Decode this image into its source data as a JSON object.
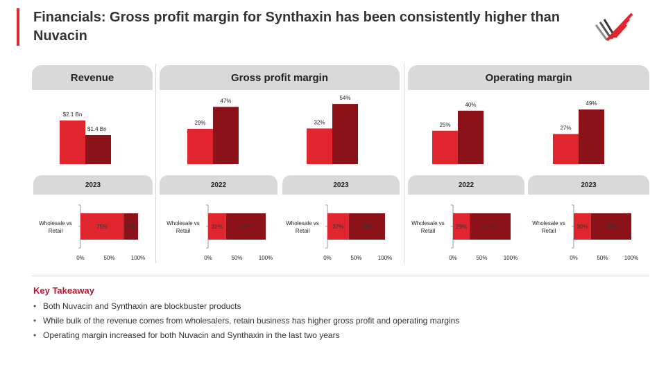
{
  "title": "Financials: Gross profit margin for Synthaxin has been consistently higher than Nuvacin",
  "colors": {
    "nuvacin": "#e0252f",
    "synthaxin": "#8b1219",
    "header_bg": "#d9d9d9",
    "accent": "#c8102e"
  },
  "panels": {
    "revenue": "Revenue",
    "gross": "Gross profit margin",
    "operating": "Operating margin"
  },
  "chart_data": [
    {
      "type": "bar",
      "id": "revenue-2023",
      "title": "Revenue",
      "category": "2023",
      "values": [
        2.1,
        1.4
      ],
      "labels": [
        "$2.1 Bn",
        "$1.4 Bn"
      ],
      "unit": "Bn USD"
    },
    {
      "type": "bar",
      "id": "gpm-2022",
      "title": "Gross profit margin",
      "category": "2022",
      "values": [
        29,
        47
      ],
      "labels": [
        "29%",
        "47%"
      ],
      "unit": "%"
    },
    {
      "type": "bar",
      "id": "gpm-2023",
      "title": "Gross profit margin",
      "category": "2023",
      "values": [
        32,
        54
      ],
      "labels": [
        "32%",
        "54%"
      ],
      "unit": "%"
    },
    {
      "type": "bar",
      "id": "opm-2022",
      "title": "Operating margin",
      "category": "2022",
      "values": [
        25,
        40
      ],
      "labels": [
        "25%",
        "40%"
      ],
      "unit": "%"
    },
    {
      "type": "bar",
      "id": "opm-2023",
      "title": "Operating margin",
      "category": "2023",
      "values": [
        27,
        49
      ],
      "labels": [
        "27%",
        "49%"
      ],
      "unit": "%"
    },
    {
      "type": "bar",
      "orientation": "horizontal",
      "stacked": true,
      "id": "mix-revenue-2023",
      "category": "2023",
      "row_label": "Wholesale vs Retail",
      "values": [
        75,
        25
      ],
      "labels": [
        "75%",
        "25%"
      ],
      "xticks": [
        "0%",
        "50%",
        "100%"
      ],
      "xlim": [
        0,
        100
      ]
    },
    {
      "type": "bar",
      "orientation": "horizontal",
      "stacked": true,
      "id": "mix-gpm-2022",
      "category": "2022",
      "row_label": "Wholesale vs Retail",
      "values": [
        31,
        69
      ],
      "labels": [
        "31%",
        "69%"
      ],
      "xticks": [
        "0%",
        "50%",
        "100%"
      ],
      "xlim": [
        0,
        100
      ]
    },
    {
      "type": "bar",
      "orientation": "horizontal",
      "stacked": true,
      "id": "mix-gpm-2023",
      "category": "2023",
      "row_label": "Wholesale vs Retail",
      "values": [
        37,
        63
      ],
      "labels": [
        "37%",
        "63%"
      ],
      "xticks": [
        "0%",
        "50%",
        "100%"
      ],
      "xlim": [
        0,
        100
      ]
    },
    {
      "type": "bar",
      "orientation": "horizontal",
      "stacked": true,
      "id": "mix-opm-2022",
      "category": "2022",
      "row_label": "Wholesale vs Retail",
      "values": [
        29,
        71
      ],
      "labels": [
        "29%",
        "71%"
      ],
      "xticks": [
        "0%",
        "50%",
        "100%"
      ],
      "xlim": [
        0,
        100
      ]
    },
    {
      "type": "bar",
      "orientation": "horizontal",
      "stacked": true,
      "id": "mix-opm-2023",
      "category": "2023",
      "row_label": "Wholesale vs Retail",
      "values": [
        30,
        70
      ],
      "labels": [
        "30%",
        "70%"
      ],
      "xticks": [
        "0%",
        "50%",
        "100%"
      ],
      "xlim": [
        0,
        100
      ]
    }
  ],
  "takeaway": {
    "title": "Key Takeaway",
    "bullets": [
      "Both Nuvacin and Synthaxin are blockbuster products",
      "While bulk of the revenue comes from wholesalers, retain business has higher gross profit and operating margins",
      "Operating margin increased for both Nuvacin and Synthaxin in the last two years"
    ]
  }
}
